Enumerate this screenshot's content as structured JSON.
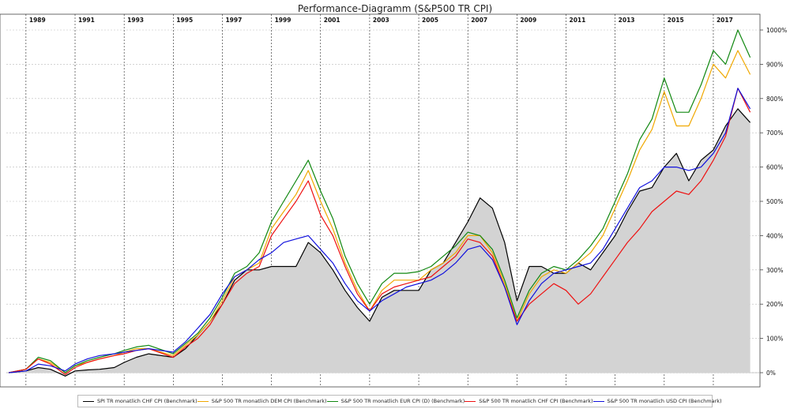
{
  "chart_data": {
    "type": "line",
    "title": "Performance-Diagramm (S&P500 TR CPI)",
    "x_ticks": [
      "1989",
      "1991",
      "1993",
      "1995",
      "1997",
      "1999",
      "2001",
      "2003",
      "2005",
      "2007",
      "2009",
      "2011",
      "2013",
      "2015",
      "2017"
    ],
    "y_ticks": [
      "0%",
      "100%",
      "200%",
      "300%",
      "400%",
      "500%",
      "600%",
      "700%",
      "800%",
      "900%",
      "1000%"
    ],
    "xlim": [
      1988.2,
      2018.9
    ],
    "ylim": [
      -5,
      1000
    ],
    "grid": true,
    "legend_position": "bottom",
    "series": [
      {
        "name": "SPI TR monatlich CHF CPI (Benchmark)",
        "color": "#000000",
        "fill": "#d3d3d3",
        "x": [
          1988.3,
          1989,
          1989.5,
          1990,
          1990.6,
          1991,
          1991.5,
          1992,
          1992.6,
          1993,
          1993.5,
          1994,
          1995,
          1995.5,
          1996,
          1996.5,
          1997,
          1997.5,
          1998,
          1998.5,
          1999,
          1999.5,
          2000,
          2000.5,
          2001,
          2001.5,
          2002,
          2002.5,
          2003,
          2003.5,
          2004,
          2004.5,
          2005,
          2005.5,
          2006,
          2006.5,
          2007,
          2007.5,
          2008,
          2008.5,
          2009,
          2009.5,
          2010,
          2010.5,
          2011,
          2011.5,
          2012,
          2012.5,
          2013,
          2013.5,
          2014,
          2014.5,
          2015,
          2015.5,
          2016,
          2016.5,
          2017,
          2017.5,
          2018,
          2018.5
        ],
        "y": [
          0,
          5,
          15,
          10,
          -10,
          5,
          8,
          10,
          15,
          30,
          45,
          55,
          45,
          70,
          110,
          150,
          200,
          270,
          300,
          300,
          310,
          310,
          310,
          380,
          350,
          300,
          240,
          190,
          150,
          220,
          240,
          240,
          240,
          300,
          320,
          380,
          440,
          510,
          480,
          380,
          210,
          310,
          310,
          290,
          290,
          320,
          300,
          350,
          400,
          470,
          530,
          540,
          600,
          640,
          560,
          620,
          650,
          720,
          770,
          730
        ]
      },
      {
        "name": "S&P 500 TR monatlich DEM CPI (Benchmark)",
        "color": "#f0a800",
        "x": [
          1988.3,
          1989,
          1989.5,
          1990,
          1990.6,
          1991,
          1991.5,
          1992,
          1992.6,
          1993,
          1993.5,
          1994,
          1995,
          1995.5,
          1996,
          1996.5,
          1997,
          1997.5,
          1998,
          1998.5,
          1999,
          1999.5,
          2000,
          2000.5,
          2001,
          2001.5,
          2002,
          2002.5,
          2003,
          2003.5,
          2004,
          2004.5,
          2005,
          2005.5,
          2006,
          2006.5,
          2007,
          2007.5,
          2008,
          2008.5,
          2009,
          2009.5,
          2010,
          2010.5,
          2011,
          2011.5,
          2012,
          2012.5,
          2013,
          2013.5,
          2014,
          2014.5,
          2015,
          2015.5,
          2016,
          2016.5,
          2017,
          2017.5,
          2018,
          2018.5
        ],
        "y": [
          0,
          10,
          40,
          30,
          0,
          20,
          30,
          40,
          50,
          60,
          70,
          70,
          50,
          80,
          110,
          150,
          210,
          280,
          300,
          320,
          420,
          470,
          520,
          590,
          500,
          420,
          320,
          240,
          180,
          240,
          270,
          270,
          270,
          300,
          320,
          350,
          400,
          400,
          350,
          260,
          150,
          230,
          280,
          300,
          290,
          320,
          350,
          400,
          480,
          560,
          650,
          710,
          820,
          720,
          720,
          800,
          900,
          860,
          940,
          870
        ]
      },
      {
        "name": "S&P 500 TR monatlich EUR CPI (D) (Benchmark)",
        "color": "#118811",
        "x": [
          1988.3,
          1989,
          1989.5,
          1990,
          1990.6,
          1991,
          1991.5,
          1992,
          1992.6,
          1993,
          1993.5,
          1994,
          1995,
          1995.5,
          1996,
          1996.5,
          1997,
          1997.5,
          1998,
          1998.5,
          1999,
          1999.5,
          2000,
          2000.5,
          2001,
          2001.5,
          2002,
          2002.5,
          2003,
          2003.5,
          2004,
          2004.5,
          2005,
          2005.5,
          2006,
          2006.5,
          2007,
          2007.5,
          2008,
          2008.5,
          2009,
          2009.5,
          2010,
          2010.5,
          2011,
          2011.5,
          2012,
          2012.5,
          2013,
          2013.5,
          2014,
          2014.5,
          2015,
          2015.5,
          2016,
          2016.5,
          2017,
          2017.5,
          2018,
          2018.5
        ],
        "y": [
          0,
          10,
          45,
          35,
          0,
          20,
          35,
          45,
          55,
          65,
          75,
          80,
          55,
          85,
          115,
          160,
          220,
          290,
          310,
          350,
          440,
          500,
          560,
          620,
          530,
          450,
          340,
          260,
          200,
          260,
          290,
          290,
          295,
          310,
          340,
          370,
          410,
          400,
          360,
          270,
          160,
          240,
          290,
          310,
          300,
          330,
          370,
          420,
          500,
          580,
          680,
          740,
          860,
          760,
          760,
          840,
          940,
          900,
          1000,
          920
        ]
      },
      {
        "name": "S&P 500 TR monatlich CHF CPI (Benchmark)",
        "color": "#ee1111",
        "x": [
          1988.3,
          1989,
          1989.5,
          1990,
          1990.6,
          1991,
          1991.5,
          1992,
          1992.6,
          1993,
          1993.5,
          1994,
          1995,
          1995.5,
          1996,
          1996.5,
          1997,
          1997.5,
          1998,
          1998.5,
          1999,
          1999.5,
          2000,
          2000.5,
          2001,
          2001.5,
          2002,
          2002.5,
          2003,
          2003.5,
          2004,
          2004.5,
          2005,
          2005.5,
          2006,
          2006.5,
          2007,
          2007.5,
          2008,
          2008.5,
          2009,
          2009.5,
          2010,
          2010.5,
          2011,
          2011.5,
          2012,
          2012.5,
          2013,
          2013.5,
          2014,
          2014.5,
          2015,
          2015.5,
          2016,
          2016.5,
          2017,
          2017.5,
          2018,
          2018.5
        ],
        "y": [
          0,
          10,
          40,
          25,
          -5,
          15,
          30,
          40,
          50,
          55,
          65,
          70,
          45,
          75,
          100,
          140,
          200,
          260,
          290,
          310,
          400,
          450,
          500,
          560,
          460,
          400,
          310,
          230,
          180,
          230,
          250,
          260,
          270,
          280,
          310,
          340,
          390,
          380,
          340,
          250,
          150,
          200,
          230,
          260,
          240,
          200,
          230,
          280,
          330,
          380,
          420,
          470,
          500,
          530,
          520,
          560,
          620,
          690,
          830,
          760
        ]
      },
      {
        "name": "S&P 500 TR monatlich USD CPI (Benchmark)",
        "color": "#1111dd",
        "x": [
          1988.3,
          1989,
          1989.5,
          1990,
          1990.6,
          1991,
          1991.5,
          1992,
          1992.6,
          1993,
          1993.5,
          1994,
          1995,
          1995.5,
          1996,
          1996.5,
          1997,
          1997.5,
          1998,
          1998.5,
          1999,
          1999.5,
          2000,
          2000.5,
          2001,
          2001.5,
          2002,
          2002.5,
          2003,
          2003.5,
          2004,
          2004.5,
          2005,
          2005.5,
          2006,
          2006.5,
          2007,
          2007.5,
          2008,
          2008.5,
          2009,
          2009.5,
          2010,
          2010.5,
          2011,
          2011.5,
          2012,
          2012.5,
          2013,
          2013.5,
          2014,
          2014.5,
          2015,
          2015.5,
          2016,
          2016.5,
          2017,
          2017.5,
          2018,
          2018.5
        ],
        "y": [
          0,
          5,
          25,
          20,
          5,
          25,
          40,
          50,
          55,
          60,
          65,
          70,
          60,
          90,
          130,
          170,
          230,
          280,
          300,
          330,
          350,
          380,
          390,
          400,
          360,
          320,
          260,
          210,
          180,
          210,
          230,
          250,
          260,
          270,
          290,
          320,
          360,
          370,
          330,
          250,
          140,
          210,
          260,
          290,
          300,
          310,
          320,
          360,
          420,
          480,
          540,
          560,
          600,
          600,
          590,
          600,
          640,
          700,
          830,
          770
        ]
      }
    ]
  }
}
